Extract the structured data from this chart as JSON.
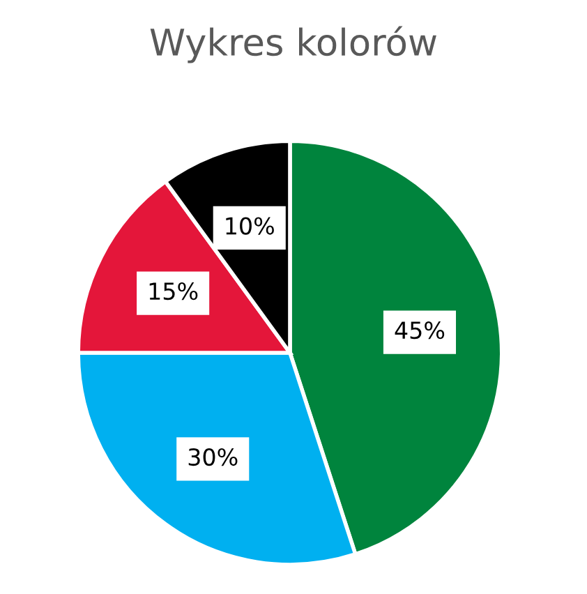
{
  "chart_data": {
    "type": "pie",
    "title": "Wykres kolorów",
    "categories": [
      null,
      null,
      null,
      null
    ],
    "values": [
      45,
      30,
      15,
      10
    ],
    "colors": [
      "#00843d",
      "#00b0f0",
      "#e4163a",
      "#000000"
    ],
    "value_labels": [
      "45%",
      "30%",
      "15%",
      "10%"
    ]
  }
}
